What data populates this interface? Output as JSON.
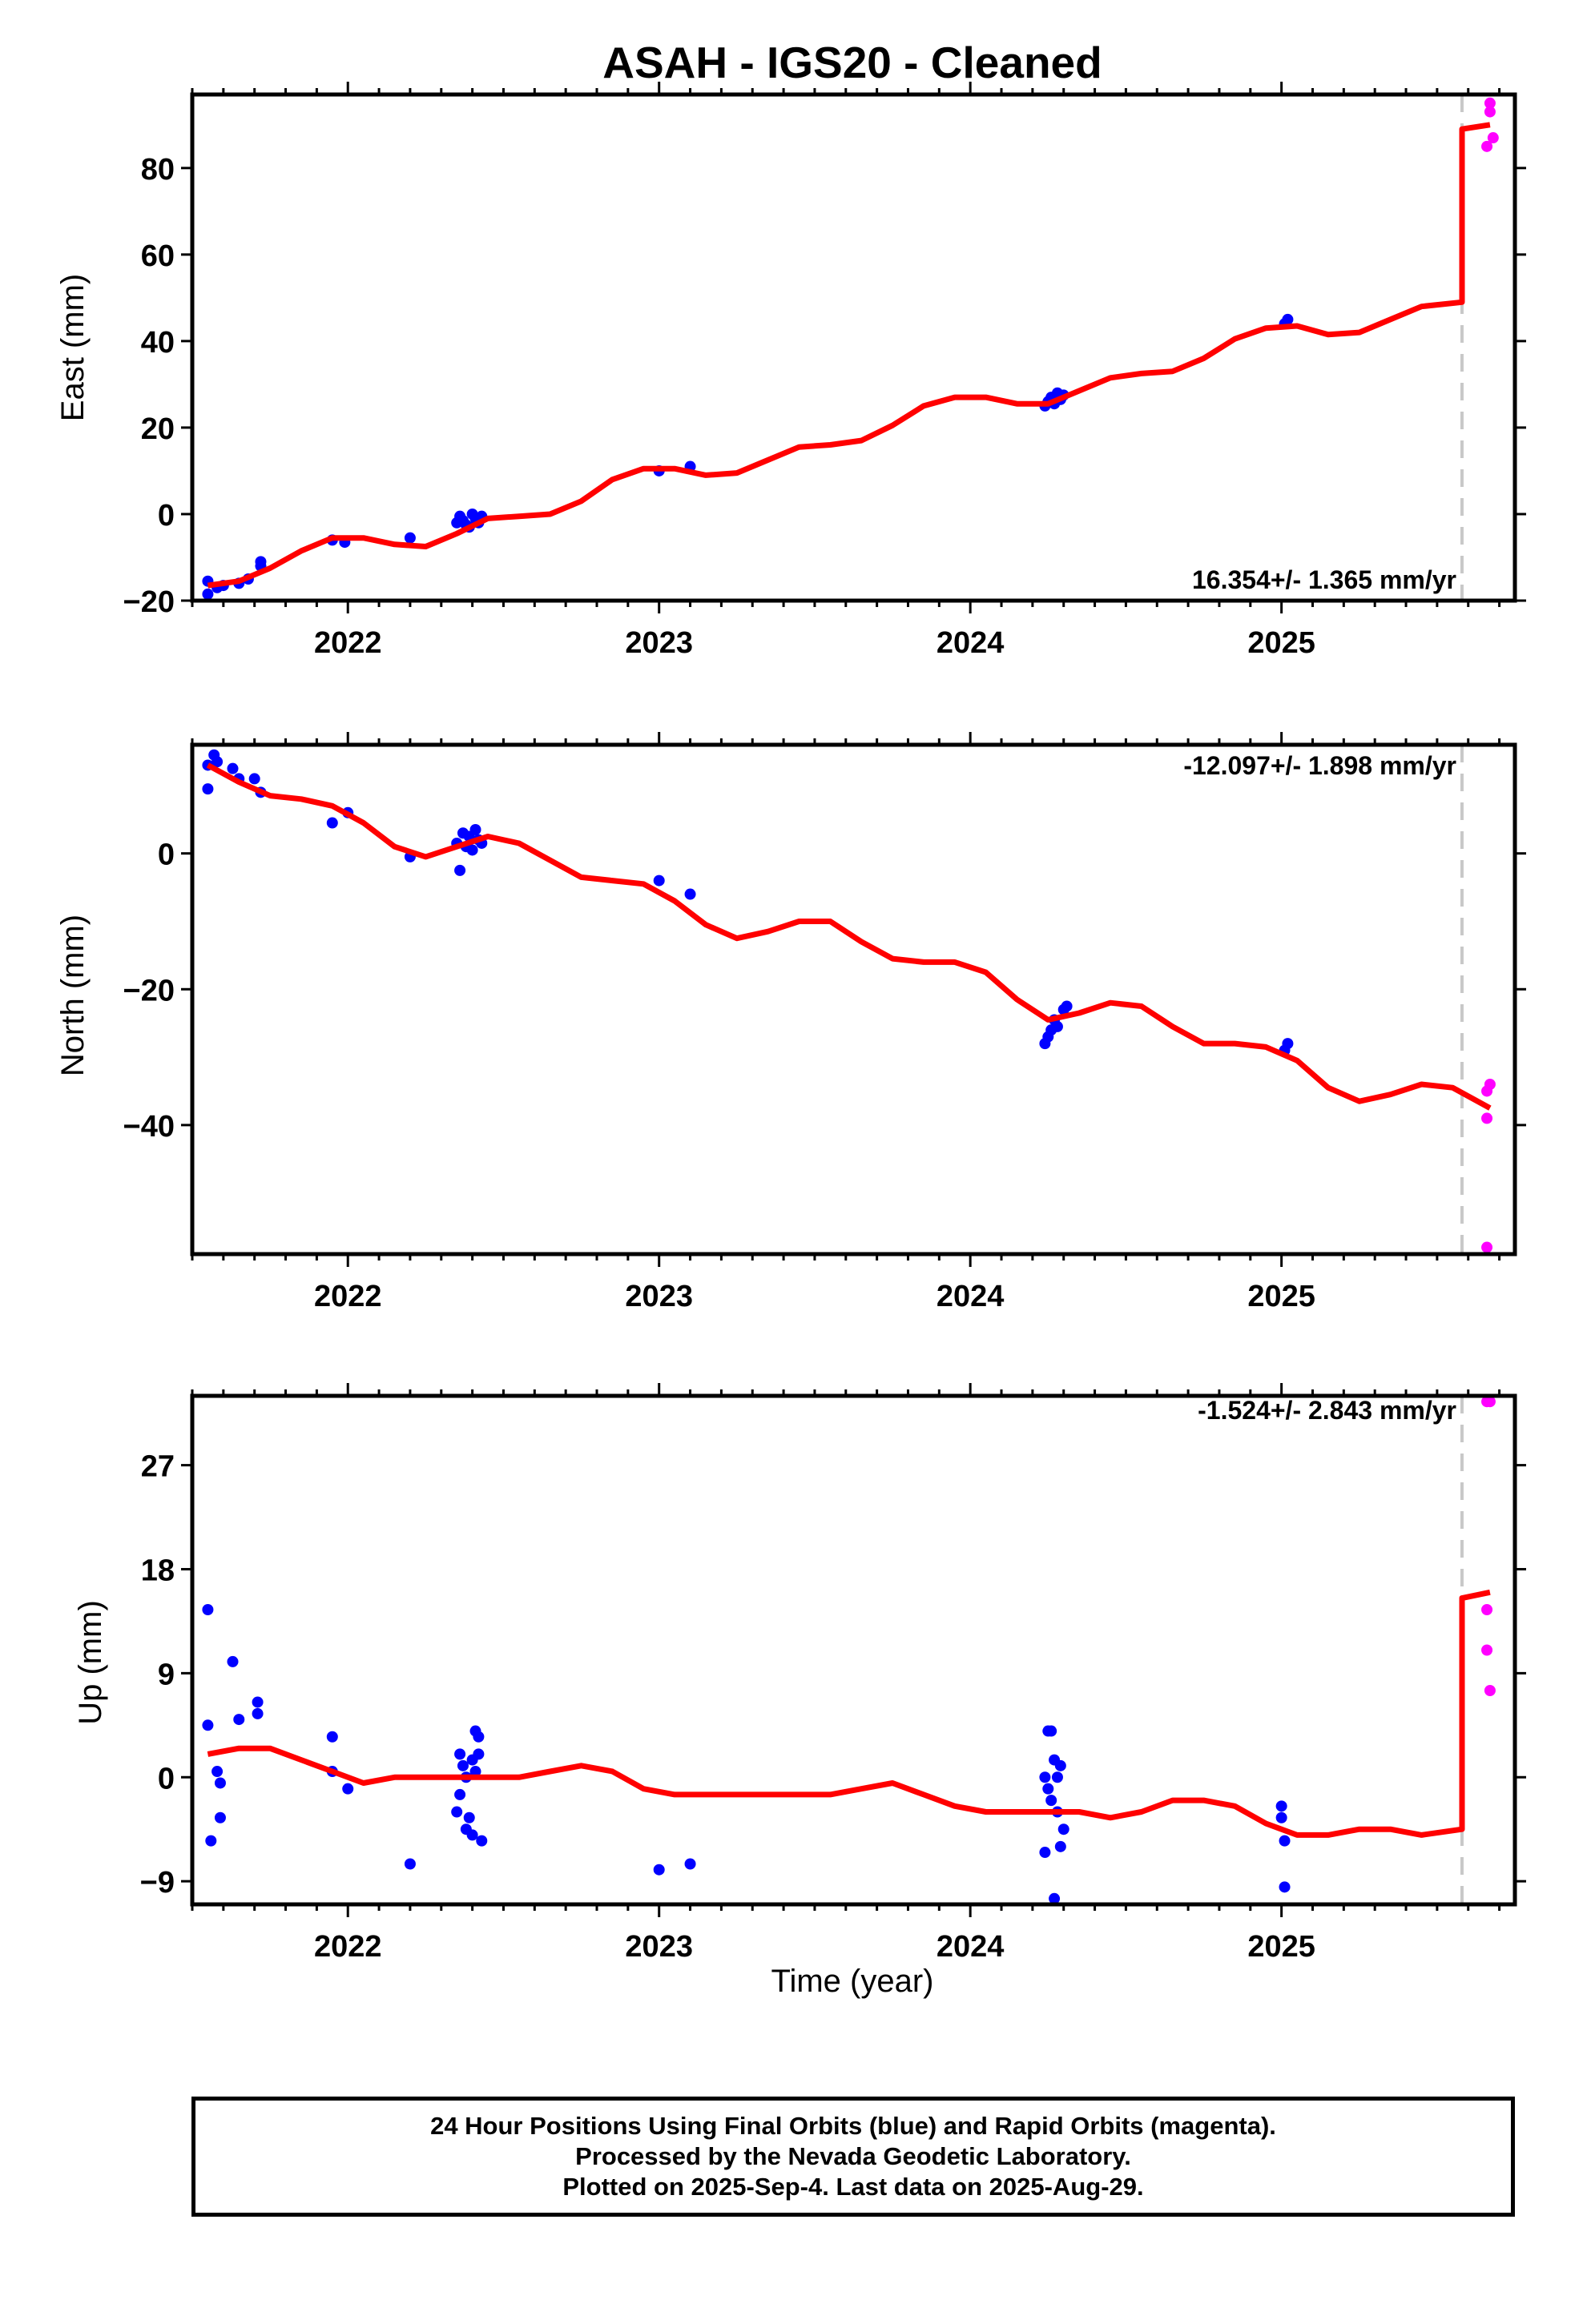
{
  "title": "ASAH  - IGS20 - Cleaned",
  "xlabel": "Time (year)",
  "footer": {
    "line1": "24 Hour Positions Using Final Orbits (blue) and Rapid Orbits (magenta).",
    "line2": "Processed by the Nevada Geodetic Laboratory.",
    "line3": "Plotted on 2025-Sep-4. Last data on 2025-Aug-29."
  },
  "colors": {
    "final": "#0000ff",
    "rapid": "#ff00ff",
    "model": "#ff0000",
    "divider": "#c8c8c8"
  },
  "chart_data": [
    {
      "type": "scatter",
      "ylabel": "East (mm)",
      "rate_label": "16.354+/- 1.365 mm/yr",
      "xlim": [
        2021.5,
        2025.75
      ],
      "ylim": [
        -20,
        97
      ],
      "xticks": [
        2022,
        2023,
        2024,
        2025
      ],
      "yticks": [
        -20,
        0,
        20,
        40,
        60,
        80
      ],
      "divider_x": 2025.58,
      "series": [
        {
          "kind": "final",
          "points": [
            [
              2021.55,
              -15.5
            ],
            [
              2021.55,
              -18.5
            ],
            [
              2021.58,
              -17
            ],
            [
              2021.6,
              -16.5
            ],
            [
              2021.65,
              -16
            ],
            [
              2021.68,
              -15
            ],
            [
              2021.72,
              -11
            ],
            [
              2021.72,
              -12
            ],
            [
              2021.95,
              -6
            ],
            [
              2021.99,
              -6.5
            ],
            [
              2022.2,
              -5.5
            ],
            [
              2022.35,
              -2
            ],
            [
              2022.36,
              -0.5
            ],
            [
              2022.37,
              -1.5
            ],
            [
              2022.38,
              -2.5
            ],
            [
              2022.39,
              -3
            ],
            [
              2022.4,
              0
            ],
            [
              2022.41,
              -1
            ],
            [
              2022.42,
              -2
            ],
            [
              2022.43,
              -0.5
            ],
            [
              2023.0,
              10
            ],
            [
              2023.1,
              11
            ],
            [
              2024.24,
              25
            ],
            [
              2024.25,
              26
            ],
            [
              2024.26,
              27
            ],
            [
              2024.27,
              25.5
            ],
            [
              2024.28,
              28
            ],
            [
              2024.29,
              26.5
            ],
            [
              2024.3,
              27.5
            ],
            [
              2025.01,
              44
            ],
            [
              2025.02,
              45
            ]
          ]
        },
        {
          "kind": "rapid",
          "points": [
            [
              2025.67,
              95
            ],
            [
              2025.67,
              93
            ],
            [
              2025.68,
              87
            ],
            [
              2025.66,
              85
            ]
          ]
        }
      ],
      "model": [
        [
          2021.55,
          -16.5
        ],
        [
          2021.65,
          -15.5
        ],
        [
          2021.75,
          -12.5
        ],
        [
          2021.85,
          -8.5
        ],
        [
          2021.95,
          -5.5
        ],
        [
          2022.05,
          -5.5
        ],
        [
          2022.15,
          -7
        ],
        [
          2022.25,
          -7.5
        ],
        [
          2022.35,
          -4.5
        ],
        [
          2022.45,
          -1
        ],
        [
          2022.55,
          -0.5
        ],
        [
          2022.65,
          0
        ],
        [
          2022.75,
          3
        ],
        [
          2022.85,
          8
        ],
        [
          2022.95,
          10.5
        ],
        [
          2023.05,
          10.5
        ],
        [
          2023.15,
          9
        ],
        [
          2023.25,
          9.5
        ],
        [
          2023.35,
          12.5
        ],
        [
          2023.45,
          15.5
        ],
        [
          2023.55,
          16
        ],
        [
          2023.65,
          17
        ],
        [
          2023.75,
          20.5
        ],
        [
          2023.85,
          25
        ],
        [
          2023.95,
          27
        ],
        [
          2024.05,
          27
        ],
        [
          2024.15,
          25.5
        ],
        [
          2024.25,
          25.5
        ],
        [
          2024.35,
          28.5
        ],
        [
          2024.45,
          31.5
        ],
        [
          2024.55,
          32.5
        ],
        [
          2024.65,
          33
        ],
        [
          2024.75,
          36
        ],
        [
          2024.85,
          40.5
        ],
        [
          2024.95,
          43
        ],
        [
          2025.05,
          43.5
        ],
        [
          2025.15,
          41.5
        ],
        [
          2025.25,
          42
        ],
        [
          2025.35,
          45
        ],
        [
          2025.45,
          48
        ],
        [
          2025.58,
          49
        ],
        [
          2025.58,
          89
        ],
        [
          2025.67,
          90
        ]
      ]
    },
    {
      "type": "scatter",
      "ylabel": "North (mm)",
      "rate_label": "-12.097+/- 1.898 mm/yr",
      "xlim": [
        2021.5,
        2025.75
      ],
      "ylim": [
        -59,
        16
      ],
      "xticks": [
        2022,
        2023,
        2024,
        2025
      ],
      "yticks": [
        -40,
        -20,
        0
      ],
      "divider_x": 2025.58,
      "series": [
        {
          "kind": "final",
          "points": [
            [
              2021.55,
              13
            ],
            [
              2021.55,
              9.5
            ],
            [
              2021.57,
              14.5
            ],
            [
              2021.58,
              13.5
            ],
            [
              2021.63,
              12.5
            ],
            [
              2021.65,
              11
            ],
            [
              2021.7,
              11
            ],
            [
              2021.72,
              9
            ],
            [
              2021.95,
              4.5
            ],
            [
              2022.0,
              6
            ],
            [
              2022.2,
              -0.5
            ],
            [
              2022.35,
              1.5
            ],
            [
              2022.36,
              -2.5
            ],
            [
              2022.37,
              3
            ],
            [
              2022.38,
              1
            ],
            [
              2022.39,
              2.5
            ],
            [
              2022.4,
              0.5
            ],
            [
              2022.41,
              3.5
            ],
            [
              2022.42,
              2
            ],
            [
              2022.43,
              1.5
            ],
            [
              2023.0,
              -4
            ],
            [
              2023.1,
              -6
            ],
            [
              2024.24,
              -28
            ],
            [
              2024.25,
              -27
            ],
            [
              2024.26,
              -26
            ],
            [
              2024.27,
              -24.5
            ],
            [
              2024.28,
              -25.5
            ],
            [
              2024.3,
              -23
            ],
            [
              2024.31,
              -22.5
            ],
            [
              2025.01,
              -29
            ],
            [
              2025.02,
              -28
            ]
          ]
        },
        {
          "kind": "rapid",
          "points": [
            [
              2025.66,
              -35
            ],
            [
              2025.67,
              -34
            ],
            [
              2025.66,
              -39
            ],
            [
              2025.66,
              -58
            ]
          ]
        }
      ],
      "model": [
        [
          2021.55,
          13
        ],
        [
          2021.65,
          10.5
        ],
        [
          2021.75,
          8.5
        ],
        [
          2021.85,
          8
        ],
        [
          2021.95,
          7
        ],
        [
          2022.05,
          4.5
        ],
        [
          2022.15,
          1
        ],
        [
          2022.25,
          -0.5
        ],
        [
          2022.35,
          1
        ],
        [
          2022.45,
          2.5
        ],
        [
          2022.55,
          1.5
        ],
        [
          2022.65,
          -1
        ],
        [
          2022.75,
          -3.5
        ],
        [
          2022.85,
          -4
        ],
        [
          2022.95,
          -4.5
        ],
        [
          2023.05,
          -7
        ],
        [
          2023.15,
          -10.5
        ],
        [
          2023.25,
          -12.5
        ],
        [
          2023.35,
          -11.5
        ],
        [
          2023.45,
          -10
        ],
        [
          2023.55,
          -10
        ],
        [
          2023.65,
          -13
        ],
        [
          2023.75,
          -15.5
        ],
        [
          2023.85,
          -16
        ],
        [
          2023.95,
          -16
        ],
        [
          2024.05,
          -17.5
        ],
        [
          2024.15,
          -21.5
        ],
        [
          2024.25,
          -24.5
        ],
        [
          2024.35,
          -23.5
        ],
        [
          2024.45,
          -22
        ],
        [
          2024.55,
          -22.5
        ],
        [
          2024.65,
          -25.5
        ],
        [
          2024.75,
          -28
        ],
        [
          2024.85,
          -28
        ],
        [
          2024.95,
          -28.5
        ],
        [
          2025.05,
          -30.5
        ],
        [
          2025.15,
          -34.5
        ],
        [
          2025.25,
          -36.5
        ],
        [
          2025.35,
          -35.5
        ],
        [
          2025.45,
          -34
        ],
        [
          2025.55,
          -34.5
        ],
        [
          2025.67,
          -37.5
        ]
      ]
    },
    {
      "type": "scatter",
      "ylabel": "Up (mm)",
      "rate_label": "-1.524+/- 2.843 mm/yr",
      "xlim": [
        2021.5,
        2025.75
      ],
      "ylim": [
        -11,
        33
      ],
      "xticks": [
        2022,
        2023,
        2024,
        2025
      ],
      "yticks": [
        -9,
        0,
        9,
        18,
        27
      ],
      "divider_x": 2025.58,
      "series": [
        {
          "kind": "final",
          "points": [
            [
              2021.55,
              14.5
            ],
            [
              2021.55,
              4.5
            ],
            [
              2021.56,
              -5.5
            ],
            [
              2021.58,
              0.5
            ],
            [
              2021.59,
              -0.5
            ],
            [
              2021.59,
              -3.5
            ],
            [
              2021.63,
              10
            ],
            [
              2021.65,
              5
            ],
            [
              2021.71,
              6.5
            ],
            [
              2021.71,
              5.5
            ],
            [
              2021.95,
              3.5
            ],
            [
              2021.95,
              0.5
            ],
            [
              2022.0,
              -1
            ],
            [
              2022.2,
              -7.5
            ],
            [
              2022.35,
              -3
            ],
            [
              2022.36,
              2
            ],
            [
              2022.36,
              -1.5
            ],
            [
              2022.37,
              1
            ],
            [
              2022.38,
              0
            ],
            [
              2022.38,
              -4.5
            ],
            [
              2022.39,
              -3.5
            ],
            [
              2022.4,
              1.5
            ],
            [
              2022.4,
              -5
            ],
            [
              2022.41,
              0.5
            ],
            [
              2022.41,
              4
            ],
            [
              2022.42,
              2
            ],
            [
              2022.42,
              3.5
            ],
            [
              2022.43,
              -5.5
            ],
            [
              2023.0,
              -8
            ],
            [
              2023.1,
              -7.5
            ],
            [
              2024.24,
              0
            ],
            [
              2024.24,
              -6.5
            ],
            [
              2024.25,
              -1
            ],
            [
              2024.25,
              4
            ],
            [
              2024.26,
              4
            ],
            [
              2024.26,
              -2
            ],
            [
              2024.27,
              1.5
            ],
            [
              2024.27,
              -10.5
            ],
            [
              2024.28,
              -3
            ],
            [
              2024.28,
              0
            ],
            [
              2024.29,
              1
            ],
            [
              2024.29,
              -6
            ],
            [
              2024.3,
              -4.5
            ],
            [
              2025.0,
              -2.5
            ],
            [
              2025.0,
              -3.5
            ],
            [
              2025.01,
              -5.5
            ],
            [
              2025.01,
              -9.5
            ]
          ]
        },
        {
          "kind": "rapid",
          "points": [
            [
              2025.66,
              32.5
            ],
            [
              2025.67,
              32.5
            ],
            [
              2025.66,
              14.5
            ],
            [
              2025.66,
              11
            ],
            [
              2025.67,
              7.5
            ]
          ]
        }
      ],
      "model": [
        [
          2021.55,
          2
        ],
        [
          2021.65,
          2.5
        ],
        [
          2021.75,
          2.5
        ],
        [
          2021.85,
          1.5
        ],
        [
          2021.95,
          0.5
        ],
        [
          2022.05,
          -0.5
        ],
        [
          2022.15,
          0
        ],
        [
          2022.25,
          0
        ],
        [
          2022.35,
          0
        ],
        [
          2022.45,
          0
        ],
        [
          2022.55,
          0
        ],
        [
          2022.65,
          0.5
        ],
        [
          2022.75,
          1
        ],
        [
          2022.85,
          0.5
        ],
        [
          2022.95,
          -1
        ],
        [
          2023.05,
          -1.5
        ],
        [
          2023.15,
          -1.5
        ],
        [
          2023.25,
          -1.5
        ],
        [
          2023.35,
          -1.5
        ],
        [
          2023.45,
          -1.5
        ],
        [
          2023.55,
          -1.5
        ],
        [
          2023.65,
          -1
        ],
        [
          2023.75,
          -0.5
        ],
        [
          2023.85,
          -1.5
        ],
        [
          2023.95,
          -2.5
        ],
        [
          2024.05,
          -3
        ],
        [
          2024.15,
          -3
        ],
        [
          2024.25,
          -3
        ],
        [
          2024.35,
          -3
        ],
        [
          2024.45,
          -3.5
        ],
        [
          2024.55,
          -3
        ],
        [
          2024.65,
          -2
        ],
        [
          2024.75,
          -2
        ],
        [
          2024.85,
          -2.5
        ],
        [
          2024.95,
          -4
        ],
        [
          2025.05,
          -5
        ],
        [
          2025.15,
          -5
        ],
        [
          2025.25,
          -4.5
        ],
        [
          2025.35,
          -4.5
        ],
        [
          2025.45,
          -5
        ],
        [
          2025.58,
          -4.5
        ],
        [
          2025.58,
          15.5
        ],
        [
          2025.67,
          16
        ]
      ]
    }
  ]
}
